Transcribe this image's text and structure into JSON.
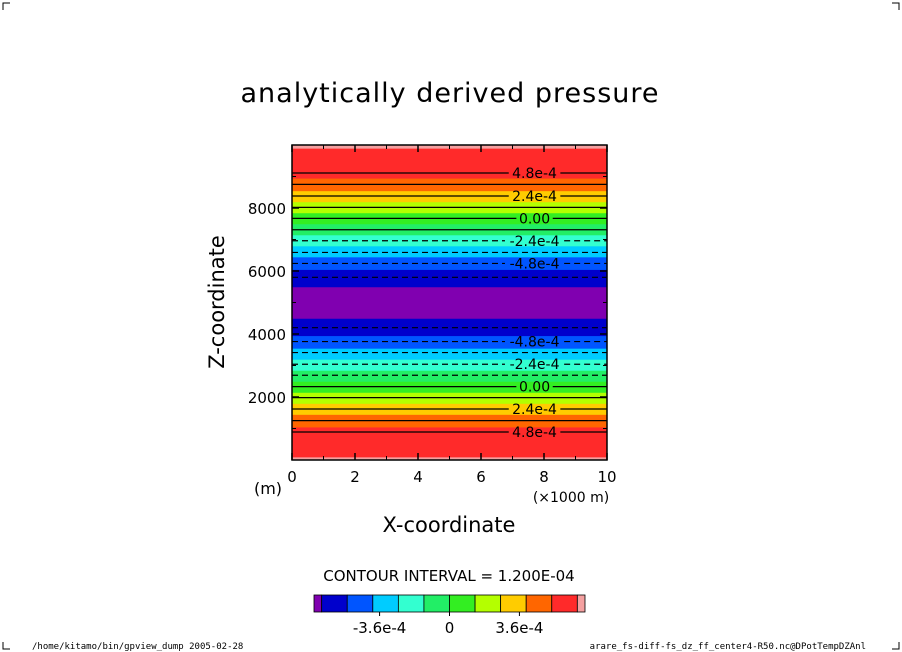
{
  "chart_data": {
    "type": "heatmap",
    "title": "analytically derived pressure",
    "xlabel": "X-coordinate",
    "ylabel": "Z-coordinate",
    "x_unit_label": "(×1000 m)",
    "y_unit_label": "(m)",
    "xlim": [
      0,
      10
    ],
    "ylim": [
      0,
      10000
    ],
    "x_ticks": [
      0,
      2,
      4,
      6,
      8,
      10
    ],
    "x_tick_labels": [
      "0",
      "2",
      "4",
      "6",
      "8",
      "10"
    ],
    "y_ticks": [
      2000,
      4000,
      6000,
      8000
    ],
    "y_tick_labels": [
      "2000",
      "4000",
      "6000",
      "8000"
    ],
    "contour_interval_text": "CONTOUR INTERVAL = 1.200E-04",
    "bands": [
      {
        "z0": 0,
        "z1": 100,
        "color": "#f4a0a0"
      },
      {
        "z0": 100,
        "z1": 400,
        "color": "#ff2a2a"
      },
      {
        "z0": 400,
        "z1": 1050,
        "color": "#ff2a2a"
      },
      {
        "z0": 1050,
        "z1": 1450,
        "color": "#ff6600"
      },
      {
        "z0": 1450,
        "z1": 1800,
        "color": "#ffcc00"
      },
      {
        "z0": 1800,
        "z1": 2150,
        "color": "#b4ff00"
      },
      {
        "z0": 2150,
        "z1": 2500,
        "color": "#33ee22"
      },
      {
        "z0": 2500,
        "z1": 2850,
        "color": "#22ee66"
      },
      {
        "z0": 2850,
        "z1": 3200,
        "color": "#33ffd0"
      },
      {
        "z0": 3200,
        "z1": 3550,
        "color": "#00ccff"
      },
      {
        "z0": 3550,
        "z1": 3950,
        "color": "#0055ff"
      },
      {
        "z0": 3950,
        "z1": 4500,
        "color": "#0000cc"
      },
      {
        "z0": 4500,
        "z1": 5500,
        "color": "#8000b0"
      },
      {
        "z0": 5500,
        "z1": 6050,
        "color": "#0000cc"
      },
      {
        "z0": 6050,
        "z1": 6450,
        "color": "#0055ff"
      },
      {
        "z0": 6450,
        "z1": 6800,
        "color": "#00ccff"
      },
      {
        "z0": 6800,
        "z1": 7150,
        "color": "#33ffd0"
      },
      {
        "z0": 7150,
        "z1": 7500,
        "color": "#22ee66"
      },
      {
        "z0": 7500,
        "z1": 7850,
        "color": "#33ee22"
      },
      {
        "z0": 7850,
        "z1": 8200,
        "color": "#b4ff00"
      },
      {
        "z0": 8200,
        "z1": 8550,
        "color": "#ffcc00"
      },
      {
        "z0": 8550,
        "z1": 8950,
        "color": "#ff6600"
      },
      {
        "z0": 8950,
        "z1": 9600,
        "color": "#ff2a2a"
      },
      {
        "z0": 9600,
        "z1": 9900,
        "color": "#ff2a2a"
      },
      {
        "z0": 9900,
        "z1": 10000,
        "color": "#f4a0a0"
      }
    ],
    "contours": [
      {
        "z": 890,
        "dashed": false,
        "label": "4.8e-4"
      },
      {
        "z": 1250,
        "dashed": false,
        "label": ""
      },
      {
        "z": 1620,
        "dashed": false,
        "label": "2.4e-4"
      },
      {
        "z": 1980,
        "dashed": false,
        "label": ""
      },
      {
        "z": 2330,
        "dashed": false,
        "label": "0.00"
      },
      {
        "z": 2690,
        "dashed": true,
        "label": ""
      },
      {
        "z": 3040,
        "dashed": true,
        "label": "-2.4e-4"
      },
      {
        "z": 3410,
        "dashed": true,
        "label": ""
      },
      {
        "z": 3760,
        "dashed": true,
        "label": "-4.8e-4"
      },
      {
        "z": 4200,
        "dashed": true,
        "label": ""
      },
      {
        "z": 5800,
        "dashed": true,
        "label": ""
      },
      {
        "z": 6240,
        "dashed": true,
        "label": "-4.8e-4"
      },
      {
        "z": 6590,
        "dashed": true,
        "label": ""
      },
      {
        "z": 6960,
        "dashed": true,
        "label": "-2.4e-4"
      },
      {
        "z": 7310,
        "dashed": false,
        "label": ""
      },
      {
        "z": 7670,
        "dashed": false,
        "label": "0.00"
      },
      {
        "z": 8020,
        "dashed": false,
        "label": ""
      },
      {
        "z": 8380,
        "dashed": false,
        "label": "2.4e-4"
      },
      {
        "z": 8750,
        "dashed": false,
        "label": ""
      },
      {
        "z": 9110,
        "dashed": false,
        "label": "4.8e-4"
      }
    ],
    "colorbar": {
      "colors": [
        "#8000b0",
        "#0000cc",
        "#0055ff",
        "#00ccff",
        "#33ffd0",
        "#22ee66",
        "#33ee22",
        "#b4ff00",
        "#ffcc00",
        "#ff6600",
        "#ff2a2a",
        "#f4a0a0"
      ],
      "tick_labels": [
        {
          "text": "-3.6e-4",
          "pos": 0.242
        },
        {
          "text": "0",
          "pos": 0.5
        },
        {
          "text": "3.6e-4",
          "pos": 0.758
        }
      ]
    }
  },
  "footer": {
    "left": "/home/kitamo/bin/gpview_dump  2005-02-28",
    "right": "arare_fs-diff-fs_dz_ff_center4-R50.nc@DPotTempDZAnl"
  }
}
